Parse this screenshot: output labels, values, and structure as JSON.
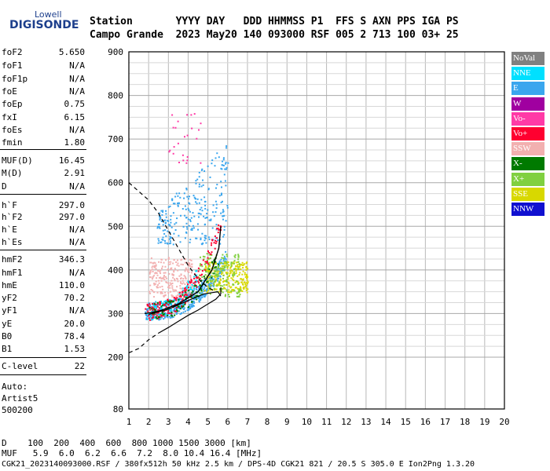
{
  "logo": {
    "small": "Lowell",
    "main": "DIGISONDE"
  },
  "header": {
    "line1": "Station       YYYY DAY   DDD HHMMSS P1  FFS S AXN PPS IGA PS",
    "line2": "Campo Grande  2023 May20 140 093000 RSF 005 2 713 100 03+ 25"
  },
  "params": [
    {
      "label": "foF2",
      "value": "5.650"
    },
    {
      "label": "foF1",
      "value": "N/A"
    },
    {
      "label": "foF1p",
      "value": "N/A"
    },
    {
      "label": "foE",
      "value": "N/A"
    },
    {
      "label": "foEp",
      "value": "0.75"
    },
    {
      "label": "fxI",
      "value": "6.15"
    },
    {
      "label": "foEs",
      "value": "N/A"
    },
    {
      "label": "fmin",
      "value": "1.80"
    },
    {
      "label": "MUF(D)",
      "value": "16.45"
    },
    {
      "label": "M(D)",
      "value": "2.91"
    },
    {
      "label": "D",
      "value": "N/A"
    },
    {
      "label": "h`F",
      "value": "297.0"
    },
    {
      "label": "h`F2",
      "value": "297.0"
    },
    {
      "label": "h`E",
      "value": "N/A"
    },
    {
      "label": "h`Es",
      "value": "N/A"
    },
    {
      "label": "hmF2",
      "value": "346.3"
    },
    {
      "label": "hmF1",
      "value": "N/A"
    },
    {
      "label": "hmE",
      "value": "110.0"
    },
    {
      "label": "yF2",
      "value": "70.2"
    },
    {
      "label": "yF1",
      "value": "N/A"
    },
    {
      "label": "yE",
      "value": "20.0"
    },
    {
      "label": "B0",
      "value": "78.4"
    },
    {
      "label": "B1",
      "value": "1.53"
    },
    {
      "label": "C-level",
      "value": "22"
    }
  ],
  "autoscaling": {
    "line1": "Auto:",
    "line2": "Artist5",
    "line3": "500200"
  },
  "legend": [
    {
      "label": "NoVal",
      "color": "#808080"
    },
    {
      "label": "NNE",
      "color": "#00e0ff"
    },
    {
      "label": "E",
      "color": "#3aa6ee"
    },
    {
      "label": "W",
      "color": "#a000a0"
    },
    {
      "label": "Vo-",
      "color": "#ff3aa6"
    },
    {
      "label": "Vo+",
      "color": "#ff0030"
    },
    {
      "label": "SSW",
      "color": "#f2b0b0"
    },
    {
      "label": "X-",
      "color": "#007a00"
    },
    {
      "label": "X+",
      "color": "#80d040"
    },
    {
      "label": "SSE",
      "color": "#d8d800"
    },
    {
      "label": "NNW",
      "color": "#1010d0"
    }
  ],
  "bottom": {
    "d_row": "D    100  200  400  600  800 1000 1500 3000 [km]",
    "muf_row": "MUF   5.9  6.0  6.2  6.6  7.2  8.0 10.4 16.4 [MHz]",
    "footer": "CGK21_2023140093000.RSF / 380fx512h 50 kHz 2.5 km / DPS-4D CGK21 821 / 20.5 S 305.0 E Ion2Png 1.3.20"
  },
  "chart_data": {
    "type": "scatter",
    "xlabel": "",
    "ylabel": "",
    "xlim": [
      1,
      20
    ],
    "ylim": [
      80,
      900
    ],
    "xticks": [
      1,
      2,
      3,
      4,
      5,
      6,
      7,
      8,
      9,
      10,
      11,
      12,
      13,
      14,
      15,
      16,
      17,
      18,
      19,
      20
    ],
    "yticks": [
      80,
      200,
      300,
      400,
      500,
      600,
      700,
      800,
      900
    ],
    "grid": true,
    "legend_position": "right",
    "clusters": [
      {
        "series": "E",
        "color": "#3aa6ee",
        "f": [
          1.8,
          5.9
        ],
        "h": [
          298,
          420
        ],
        "n": 420,
        "shape": "trace"
      },
      {
        "series": "E",
        "color": "#3aa6ee",
        "f": [
          2.4,
          6.0
        ],
        "h": [
          460,
          700
        ],
        "n": 260,
        "shape": "trace2"
      },
      {
        "series": "NNE",
        "color": "#00e0ff",
        "f": [
          1.9,
          4.4
        ],
        "h": [
          300,
          380
        ],
        "n": 120,
        "shape": "trace"
      },
      {
        "series": "SSW",
        "color": "#f2b0b0",
        "f": [
          2.0,
          4.2
        ],
        "h": [
          340,
          430
        ],
        "n": 220,
        "shape": "box"
      },
      {
        "series": "SSE",
        "color": "#d8d800",
        "f": [
          4.8,
          7.0
        ],
        "h": [
          350,
          420
        ],
        "n": 260,
        "shape": "box"
      },
      {
        "series": "X+",
        "color": "#80d040",
        "f": [
          4.5,
          6.6
        ],
        "h": [
          340,
          440
        ],
        "n": 150,
        "shape": "box"
      },
      {
        "series": "Vo+",
        "color": "#ff0030",
        "f": [
          1.8,
          5.7
        ],
        "h": [
          298,
          510
        ],
        "n": 180,
        "shape": "trace"
      },
      {
        "series": "X-",
        "color": "#007a00",
        "f": [
          2.0,
          5.5
        ],
        "h": [
          300,
          420
        ],
        "n": 90,
        "shape": "trace"
      },
      {
        "series": "Vo-",
        "color": "#ff3aa6",
        "f": [
          3.0,
          4.6
        ],
        "h": [
          640,
          760
        ],
        "n": 25,
        "shape": "box"
      }
    ],
    "trace_curve": [
      [
        1.8,
        300
      ],
      [
        2.5,
        305
      ],
      [
        3.5,
        322
      ],
      [
        4.5,
        350
      ],
      [
        5.2,
        400
      ],
      [
        5.55,
        450
      ],
      [
        5.65,
        500
      ]
    ],
    "profile_curve": [
      [
        2.0,
        298
      ],
      [
        3.0,
        310
      ],
      [
        4.0,
        330
      ],
      [
        4.8,
        345
      ],
      [
        5.5,
        350
      ],
      [
        5.65,
        340
      ]
    ],
    "dashed_lower": [
      [
        1.0,
        210
      ],
      [
        1.5,
        220
      ],
      [
        2.0,
        240
      ],
      [
        2.5,
        255
      ]
    ],
    "dashed_upper": [
      [
        1.0,
        600
      ],
      [
        1.5,
        580
      ],
      [
        2.0,
        560
      ],
      [
        2.5,
        530
      ],
      [
        3.0,
        490
      ],
      [
        3.5,
        450
      ],
      [
        4.0,
        410
      ],
      [
        4.5,
        380
      ],
      [
        5.0,
        360
      ],
      [
        5.4,
        350
      ]
    ],
    "solid_lower": [
      [
        2.5,
        255
      ],
      [
        3.0,
        268
      ],
      [
        3.5,
        282
      ],
      [
        4.0,
        296
      ],
      [
        4.5,
        308
      ],
      [
        5.0,
        322
      ],
      [
        5.4,
        333
      ],
      [
        5.65,
        345
      ],
      [
        5.65,
        360
      ]
    ]
  }
}
